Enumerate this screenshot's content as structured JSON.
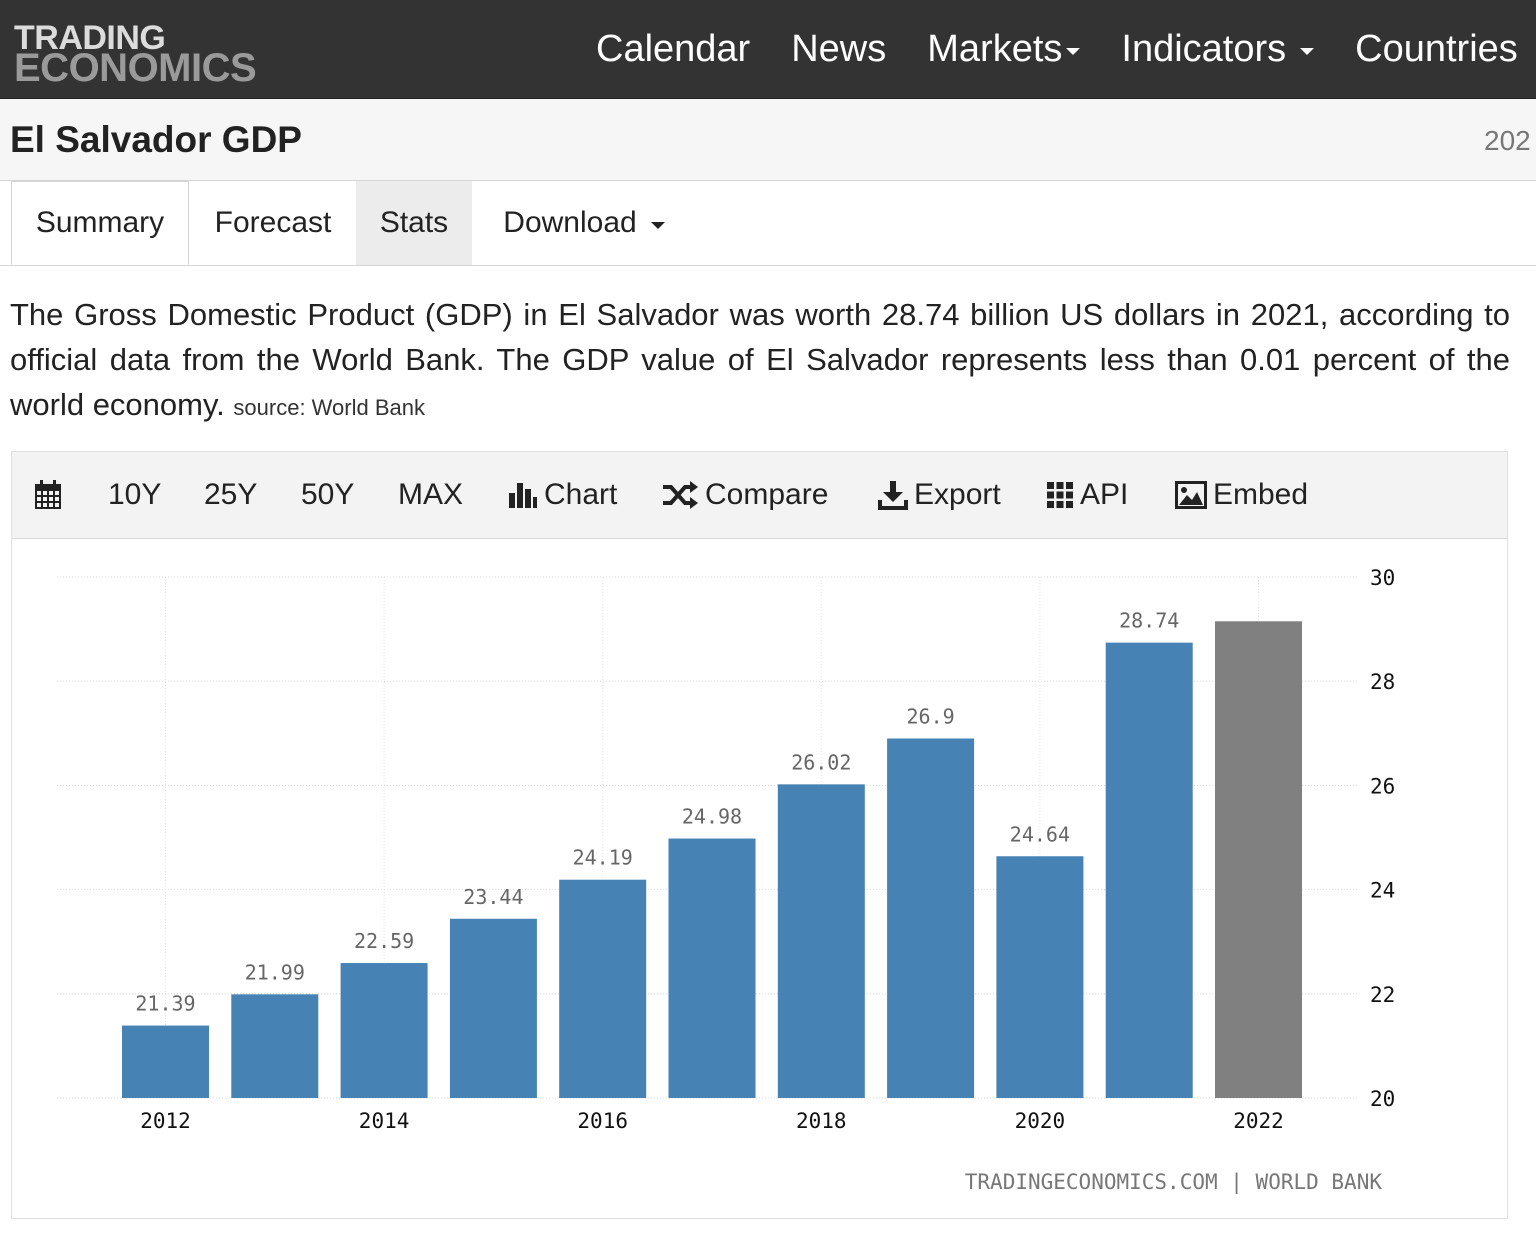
{
  "logo": {
    "line1": "TRADING",
    "line2": "ECONOMICS"
  },
  "nav": {
    "calendar": "Calendar",
    "news": "News",
    "markets": "Markets",
    "indicators": "Indicators",
    "countries": "Countries"
  },
  "page": {
    "title": "El Salvador GDP",
    "date_clip": "202"
  },
  "tabs": {
    "summary": "Summary",
    "forecast": "Forecast",
    "stats": "Stats",
    "download": "Download"
  },
  "description": {
    "text": "The Gross Domestic Product (GDP) in El Salvador was worth 28.74 billion US dollars in 2021, according to official data from the World Bank. The GDP value of El Salvador represents less than 0.01 percent of the world economy.",
    "source": "source: World Bank"
  },
  "toolbar": {
    "y10": "10Y",
    "y25": "25Y",
    "y50": "50Y",
    "max": "MAX",
    "chart": "Chart",
    "compare": "Compare",
    "export": "Export",
    "api": "API",
    "embed": "Embed"
  },
  "colors": {
    "bar": "#4682b4",
    "forecast_bar": "#808080",
    "nav_bg": "#333333"
  },
  "chart_data": {
    "type": "bar",
    "title": "",
    "xlabel": "",
    "ylabel": "",
    "years": [
      2012,
      2013,
      2014,
      2015,
      2016,
      2017,
      2018,
      2019,
      2020,
      2021,
      2022
    ],
    "values": [
      21.39,
      21.99,
      22.59,
      23.44,
      24.19,
      24.98,
      26.02,
      26.9,
      24.64,
      28.74,
      29.15
    ],
    "value_labels": [
      "21.39",
      "21.99",
      "22.59",
      "23.44",
      "24.19",
      "24.98",
      "26.02",
      "26.9",
      "24.64",
      "28.74",
      ""
    ],
    "forecast_from": 2022,
    "x_ticks": [
      "2012",
      "2014",
      "2016",
      "2018",
      "2020",
      "2022"
    ],
    "y_ticks": [
      "20",
      "22",
      "24",
      "26",
      "28",
      "30"
    ],
    "ylim": [
      20,
      30
    ],
    "y_axis_side": "right",
    "grid": true,
    "credit": "TRADINGECONOMICS.COM | WORLD BANK"
  }
}
